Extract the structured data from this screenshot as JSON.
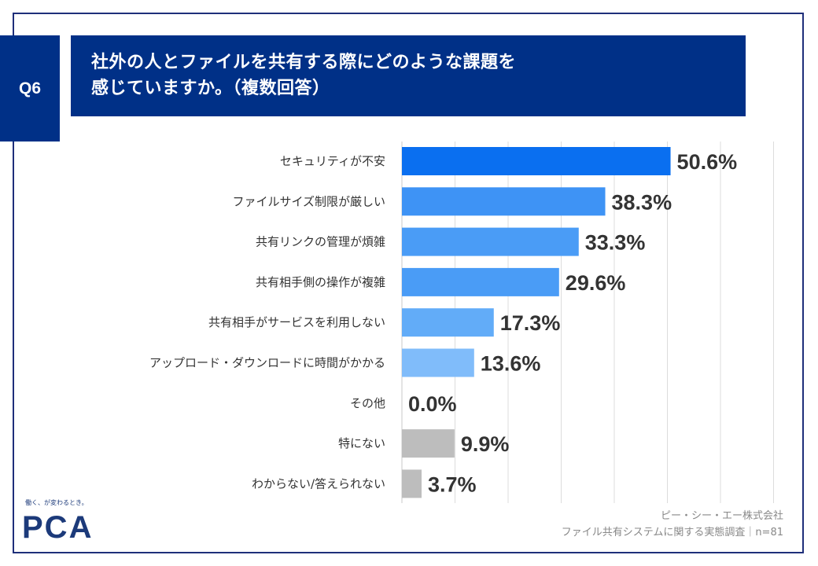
{
  "header": {
    "question_no": "Q6",
    "title_line1": "社外の人とファイルを共有する際にどのような課題を",
    "title_line2": "感じていますか。（複数回答）"
  },
  "chart_data": {
    "type": "bar",
    "orientation": "horizontal",
    "categories": [
      "セキュリティが不安",
      "ファイルサイズ制限が厳しい",
      "共有リンクの管理が煩雑",
      "共有相手側の操作が複雑",
      "共有相手がサービスを利用しない",
      "アップロード・ダウンロードに時間がかかる",
      "その他",
      "特にない",
      "わからない/答えられない"
    ],
    "values": [
      50.6,
      38.3,
      33.3,
      29.6,
      17.3,
      13.6,
      0.0,
      9.9,
      3.7
    ],
    "value_labels": [
      "50.6%",
      "38.3%",
      "33.3%",
      "29.6%",
      "17.3%",
      "13.6%",
      "0.0%",
      "9.9%",
      "3.7%"
    ],
    "bar_colors": [
      "#0a6ff0",
      "#3e93f5",
      "#4a9cf6",
      "#4a9cf6",
      "#62acf8",
      "#80bcfa",
      "#80bcfa",
      "#bdbdbd",
      "#bdbdbd"
    ],
    "xlim": [
      0,
      70
    ],
    "gridlines": true,
    "unit": "%"
  },
  "footer": {
    "logo_tagline": "働く、が変わるとき。",
    "logo_text": "PCA",
    "source_company": "ピー・シー・エー株式会社",
    "source_survey": "ファイル共有システムに関する実態調査｜n=81"
  },
  "colors": {
    "title_bg": "#003087",
    "frame": "#1f2f7a",
    "logo": "#1c3a7a"
  }
}
